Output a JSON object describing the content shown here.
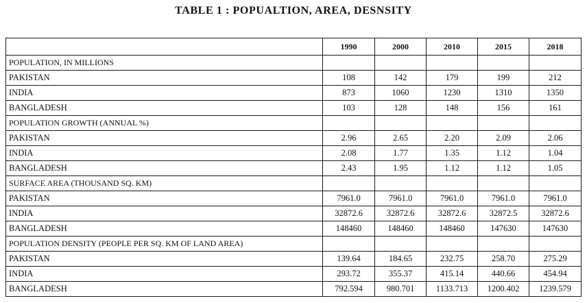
{
  "title": "TABLE 1 :  POPUALTION, AREA, DESNSITY",
  "years": [
    "1990",
    "2000",
    "2010",
    "2015",
    "2018"
  ],
  "sections": [
    {
      "heading": "POPULATION, IN MILLIONS",
      "rows": [
        {
          "country": "PAKISTAN",
          "values": [
            "108",
            "142",
            "179",
            "199",
            "212"
          ]
        },
        {
          "country": "INDIA",
          "values": [
            "873",
            "1060",
            "1230",
            "1310",
            "1350"
          ]
        },
        {
          "country": "BANGLADESH",
          "values": [
            "103",
            "128",
            "148",
            "156",
            "161"
          ]
        }
      ]
    },
    {
      "heading": "POPULATION GROWTH (ANNUAL %)",
      "rows": [
        {
          "country": "PAKISTAN",
          "values": [
            "2.96",
            "2.65",
            "2.20",
            "2.09",
            "2.06"
          ]
        },
        {
          "country": "INDIA",
          "values": [
            "2.08",
            "1.77",
            "1.35",
            "1.12",
            "1.04"
          ]
        },
        {
          "country": "BANGLADESH",
          "values": [
            "2.43",
            "1.95",
            "1.12",
            "1.12",
            "1.05"
          ]
        }
      ]
    },
    {
      "heading": "SURFACE AREA (THOUSAND SQ. KM)",
      "rows": [
        {
          "country": "PAKISTAN",
          "values": [
            "7961.0",
            "7961.0",
            "7961.0",
            "7961.0",
            "7961.0"
          ]
        },
        {
          "country": "INDIA",
          "values": [
            "32872.6",
            "32872.6",
            "32872.6",
            "32872.5",
            "32872.6"
          ]
        },
        {
          "country": "BANGLADESH",
          "values": [
            "148460",
            "148460",
            "148460",
            "147630",
            "147630"
          ]
        }
      ]
    },
    {
      "heading": "POPULATION DENSITY (PEOPLE PER SQ. KM OF LAND AREA)",
      "rows": [
        {
          "country": "PAKISTAN",
          "values": [
            "139.64",
            "184.65",
            "232.75",
            "258.70",
            "275.29"
          ]
        },
        {
          "country": "INDIA",
          "values": [
            "293.72",
            "355.37",
            "415.14",
            "440.66",
            "454.94"
          ]
        },
        {
          "country": "BANGLADESH",
          "values": [
            "792.594",
            "980.701",
            "1133.713",
            "1200.402",
            "1239.579"
          ]
        }
      ]
    }
  ]
}
